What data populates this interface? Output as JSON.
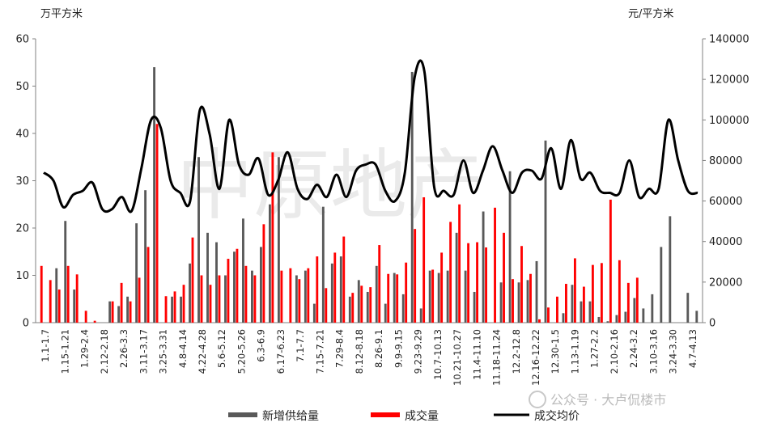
{
  "chart_data": {
    "type": "bar+line",
    "title": "",
    "left_axis": {
      "unit": "万平方米",
      "ylim": [
        0,
        60
      ],
      "ticks": [
        "0",
        "10",
        "20",
        "30",
        "40",
        "50",
        "60"
      ]
    },
    "right_axis": {
      "unit": "元/平方米",
      "ylim": [
        0,
        140000
      ],
      "ticks": [
        "0",
        "20000",
        "40000",
        "60000",
        "80000",
        "100000",
        "120000",
        "140000"
      ]
    },
    "x_tick_labels": [
      "1.1-1.7",
      "1.15-1.21",
      "1.29-2.4",
      "2.12-2.18",
      "2.26-3.3",
      "3.11-3.17",
      "3.25-3.31",
      "4.8-4.14",
      "4.22-4.28",
      "5.6-5.12",
      "5.20-5.26",
      "6.3-6.9",
      "6.17-6.23",
      "7.1-7.7",
      "7.15-7.21",
      "7.29-8.4",
      "8.12-8.18",
      "8.26-9.1",
      "9.9-9.15",
      "9.23-9.29",
      "10.7-10.13",
      "10.21-10.27",
      "11.4-11.10",
      "11.18-11.24",
      "12.2-12.8",
      "12.16-12.22",
      "12.30-1.5",
      "1.13-1.19",
      "1.27-2.2",
      "2.10-2.16",
      "2.24-3.2",
      "3.10-3.16",
      "3.24-3.30",
      "4.7-4.13"
    ],
    "series": [
      {
        "name": "新增供给量",
        "type": "bar",
        "axis": "left",
        "color": "#595959",
        "values": [
          0,
          0,
          11.5,
          21.5,
          7,
          0,
          0,
          0,
          4.5,
          3.5,
          5.5,
          21,
          28,
          54,
          0,
          5.5,
          5.5,
          12.5,
          35,
          19,
          17,
          10,
          15,
          22,
          11,
          16,
          25,
          35,
          0,
          10,
          11,
          4,
          24.5,
          12.5,
          14,
          5.5,
          9,
          6.5,
          12,
          4,
          10.5,
          6,
          53,
          3,
          11,
          10.5,
          11,
          19,
          11,
          6.5,
          23.5,
          0,
          8.5,
          32,
          8.5,
          9,
          13,
          38.5,
          0,
          2,
          8,
          4.5,
          4.5,
          1.2,
          0.3,
          1.6,
          2.3,
          5.2,
          3,
          6,
          16,
          22.5,
          0,
          6.3,
          2.5
        ]
      },
      {
        "name": "成交量",
        "type": "bar",
        "axis": "left",
        "color": "#ff0000",
        "values": [
          12,
          9,
          7,
          12,
          10.2,
          2.5,
          0.4,
          0,
          4.5,
          8.4,
          4.5,
          9.5,
          16,
          42,
          5.6,
          6.6,
          8,
          18,
          10,
          8,
          10,
          13.5,
          15.6,
          12,
          10,
          20.8,
          36,
          11,
          11.5,
          9.2,
          11.5,
          14,
          7.3,
          14.8,
          18.2,
          6.3,
          7.8,
          7.5,
          16.4,
          10.3,
          10.2,
          12.7,
          19.8,
          26.5,
          11.2,
          14.8,
          21.3,
          25,
          16.8,
          17,
          15.9,
          24.3,
          19,
          9.2,
          16.2,
          10.3,
          0.7,
          3.2,
          5.5,
          8.2,
          13.6,
          7.6,
          12.2,
          12.6,
          26,
          13.2,
          8.4,
          9.5,
          0,
          0,
          0,
          0,
          0,
          0,
          0
        ]
      },
      {
        "name": "成交均价",
        "type": "line",
        "axis": "right",
        "color": "#000000",
        "values": [
          74000,
          70000,
          57000,
          63000,
          65000,
          69000,
          56000,
          56000,
          62000,
          55000,
          76000,
          100000,
          96000,
          70000,
          64000,
          60000,
          105000,
          93000,
          66000,
          100000,
          78000,
          73000,
          81000,
          63000,
          70000,
          84000,
          66000,
          61000,
          68000,
          62000,
          73000,
          62000,
          75000,
          78000,
          78000,
          65000,
          60000,
          74000,
          121000,
          124000,
          67000,
          65000,
          63000,
          80000,
          64000,
          75000,
          87000,
          75000,
          64000,
          74000,
          75000,
          71000,
          86000,
          66000,
          90000,
          71000,
          74000,
          65000,
          64000,
          64000,
          80000,
          62000,
          66000,
          66000,
          100000,
          80000,
          65000,
          64000
        ]
      }
    ],
    "legend": [
      "新增供给量",
      "成交量",
      "成交均价"
    ],
    "legend_position": "bottom",
    "watermark": "中原地产",
    "credit": "公众号 · 大卢侃楼市",
    "grid": false
  }
}
